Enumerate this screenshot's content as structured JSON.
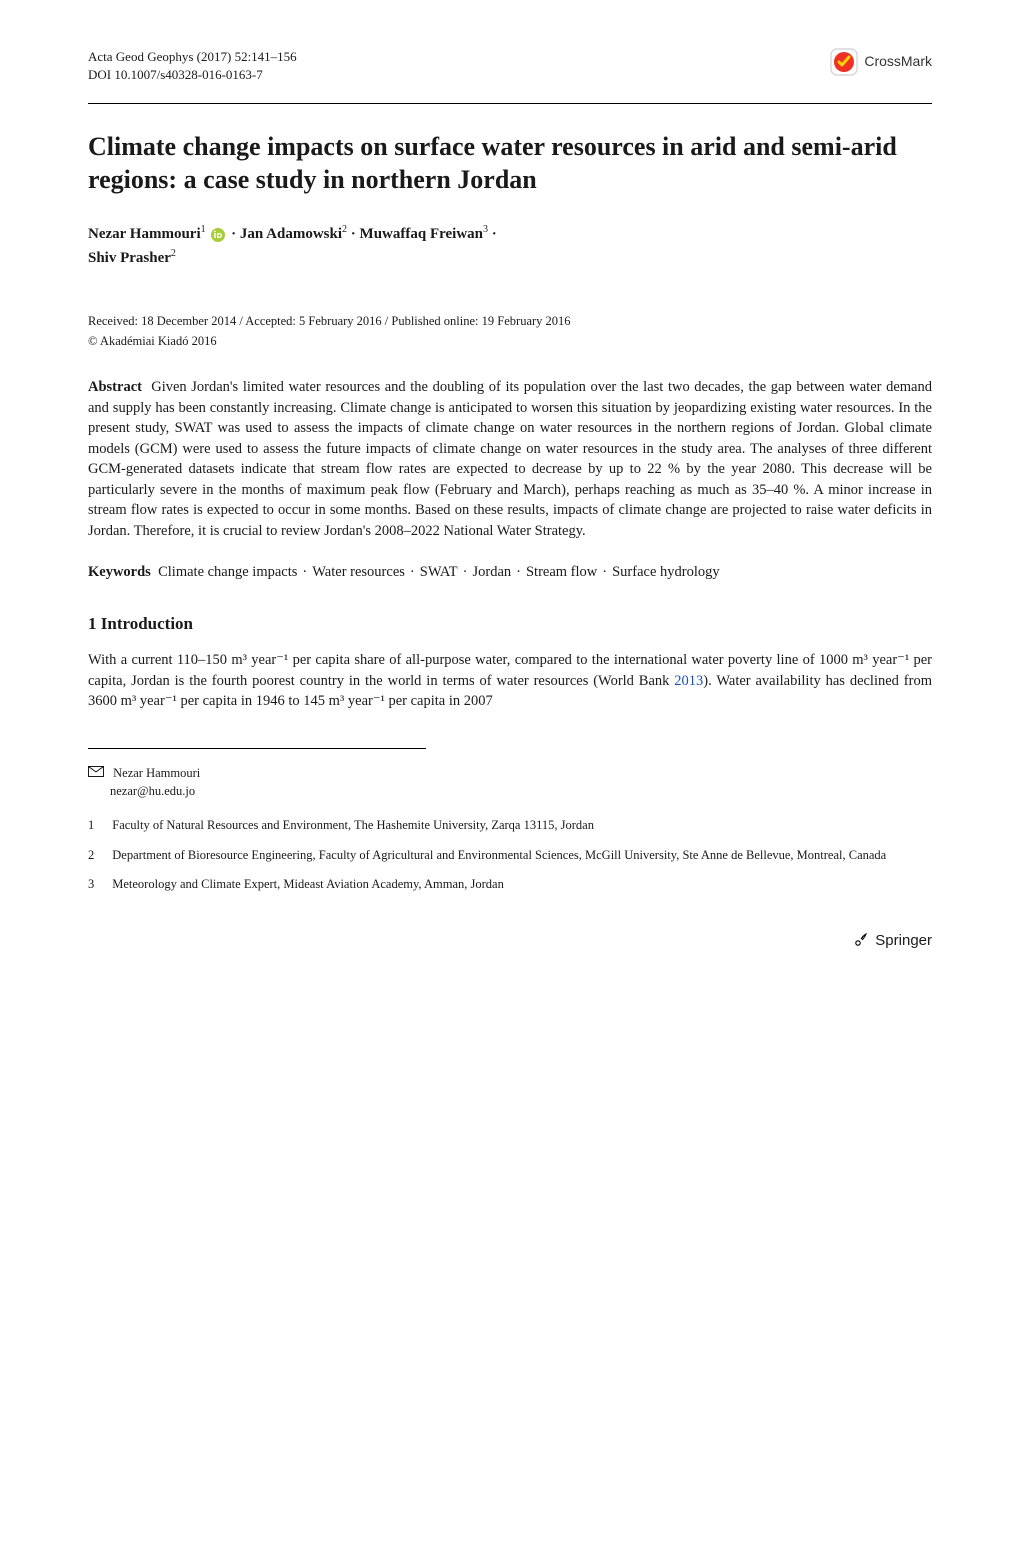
{
  "header": {
    "journal_line": "Acta Geod Geophys (2017) 52:141–156",
    "doi_line": "DOI 10.1007/s40328-016-0163-7",
    "crossmark_label": "CrossMark",
    "crossmark_colors": {
      "outer": "#d9d9d9",
      "circle": "#ee3124",
      "tick": "#ffd100"
    }
  },
  "title": "Climate change impacts on surface water resources in arid and semi-arid regions: a case study in northern Jordan",
  "authors_html_parts": {
    "a1_name": "Nezar Hammouri",
    "a1_sup": "1",
    "a2_name": "Jan Adamowski",
    "a2_sup": "2",
    "a3_name": "Muwaffaq Freiwan",
    "a3_sup": "3",
    "a4_name": "Shiv Prasher",
    "a4_sup": "2",
    "orcid_color": "#A6CE39"
  },
  "dates": "Received: 18 December 2014 / Accepted: 5 February 2016 / Published online: 19 February 2016",
  "copyright": "© Akadémiai Kiadó 2016",
  "abstract_label": "Abstract",
  "abstract_text": "Given Jordan's limited water resources and the doubling of its population over the last two decades, the gap between water demand and supply has been constantly increasing. Climate change is anticipated to worsen this situation by jeopardizing existing water resources. In the present study, SWAT was used to assess the impacts of climate change on water resources in the northern regions of Jordan. Global climate models (GCM) were used to assess the future impacts of climate change on water resources in the study area. The analyses of three different GCM-generated datasets indicate that stream flow rates are expected to decrease by up to 22 % by the year 2080. This decrease will be particularly severe in the months of maximum peak flow (February and March), perhaps reaching as much as 35–40 %. A minor increase in stream flow rates is expected to occur in some months. Based on these results, impacts of climate change are projected to raise water deficits in Jordan. Therefore, it is crucial to review Jordan's 2008–2022 National Water Strategy.",
  "keywords_label": "Keywords",
  "keywords": [
    "Climate change impacts",
    "Water resources",
    "SWAT",
    "Jordan",
    "Stream flow",
    "Surface hydrology"
  ],
  "section_heading": "1 Introduction",
  "intro_text": "With a current 110–150 m³ year⁻¹ per capita share of all-purpose water, compared to the international water poverty line of 1000 m³ year⁻¹ per capita, Jordan is the fourth poorest country in the world in terms of water resources (World Bank 2013). Water availability has declined from 3600 m³ year⁻¹ per capita in 1946 to 145 m³ year⁻¹ per capita in 2007",
  "intro_citation_color": "#1a4fb5",
  "corresponding": {
    "name": "Nezar Hammouri",
    "email": "nezar@hu.edu.jo"
  },
  "affiliations": [
    {
      "n": "1",
      "text": "Faculty of Natural Resources and Environment, The Hashemite University, Zarqa 13115, Jordan"
    },
    {
      "n": "2",
      "text": "Department of Bioresource Engineering, Faculty of Agricultural and Environmental Sciences, McGill University, Ste Anne de Bellevue, Montreal, Canada"
    },
    {
      "n": "3",
      "text": "Meteorology and Climate Expert, Mideast Aviation Academy, Amman, Jordan"
    }
  ],
  "footer": {
    "publisher": "Springer"
  },
  "style": {
    "page_bg": "#ffffff",
    "text_color": "#1a1a1a",
    "link_color": "#1a4fb5",
    "title_fontsize": 26,
    "body_fontsize": 14.5,
    "small_fontsize": 12.5
  }
}
